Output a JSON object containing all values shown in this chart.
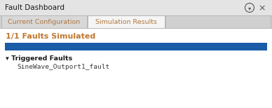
{
  "bg_color": "#ececec",
  "white_area_color": "#ffffff",
  "title_text": "Fault Dashboard",
  "title_fontsize": 7.5,
  "title_color": "#1a1a1a",
  "tab1_text": "Current Configuration",
  "tab2_text": "Simulation Results",
  "tab_fontsize": 6.8,
  "tab1_color": "#b07840",
  "tab2_color": "#b07840",
  "tab2_bg": "#f5f5f5",
  "tab1_bg": "#d8d8d8",
  "faults_simulated_text": "1/1 Faults Simulated",
  "faults_fontsize": 8.0,
  "faults_color": "#c07830",
  "progress_bar_color": "#1a5ca8",
  "triggered_faults_text": "▾ Triggered Faults",
  "triggered_faults_fontsize": 6.8,
  "triggered_faults_color": "#1a1a1a",
  "fault_item_text": "SineWave_Outport1_fault",
  "fault_item_fontsize": 6.8,
  "fault_item_color": "#3a3a3a",
  "header_bg": "#e4e4e4",
  "tab_area_bg": "#d0d0d0",
  "header_border": "#b8b8b8",
  "outer_border_color": "#aaaaaa",
  "icon_color": "#555555",
  "fig_width": 3.88,
  "fig_height": 1.54,
  "dpi": 100
}
